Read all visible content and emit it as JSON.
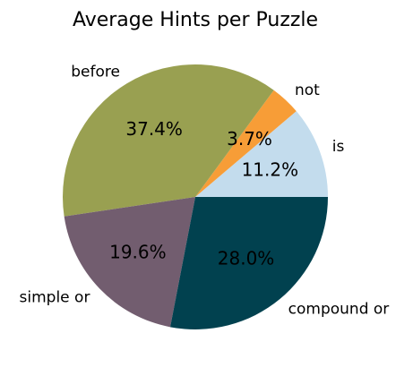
{
  "chart_data": {
    "type": "pie",
    "title": "Average Hints per Puzzle",
    "categories": [
      "is",
      "not",
      "before",
      "simple or",
      "compound or"
    ],
    "values": [
      11.2,
      3.7,
      37.4,
      19.6,
      28.0
    ],
    "value_labels": [
      "11.2%",
      "3.7%",
      "37.4%",
      "19.6%",
      "28.0%"
    ],
    "colors": [
      "#c3dced",
      "#f79d37",
      "#99a051",
      "#725d6f",
      "#01414f"
    ],
    "start_angle_deg": 0,
    "direction": "counterclockwise",
    "legend": "none"
  }
}
